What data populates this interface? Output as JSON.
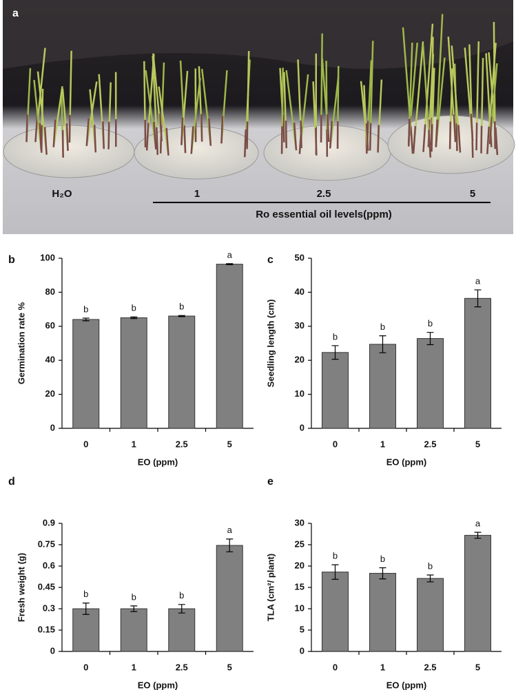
{
  "photo": {
    "panel": "a",
    "labels": [
      "H₂O",
      "1",
      "2.5",
      "5"
    ],
    "caption": "Ro essential oil levels(ppm)"
  },
  "chart_data": [
    {
      "type": "bar",
      "panel": "b",
      "ylabel": "Germination rate  %",
      "xlabel": "EO (ppm)",
      "categories": [
        "0",
        "1",
        "2.5",
        "5"
      ],
      "values": [
        64,
        65,
        66,
        96.5
      ],
      "errors": [
        0.8,
        0.5,
        0.3,
        0.3
      ],
      "annotations": [
        "b",
        "b",
        "b",
        "a"
      ],
      "color": "#808080",
      "ylim": [
        0,
        100
      ],
      "yticks": [
        0,
        20,
        40,
        60,
        80,
        100
      ]
    },
    {
      "type": "bar",
      "panel": "c",
      "ylabel": "Seedling length (cm)",
      "xlabel": "EO (ppm)",
      "categories": [
        "0",
        "1",
        "2.5",
        "5"
      ],
      "values": [
        22.3,
        24.7,
        26.4,
        38.2
      ],
      "errors": [
        2,
        2.5,
        1.8,
        2.5
      ],
      "annotations": [
        "b",
        "b",
        "b",
        "a"
      ],
      "color": "#808080",
      "ylim": [
        0,
        50
      ],
      "yticks": [
        0,
        10,
        20,
        30,
        40,
        50
      ]
    },
    {
      "type": "bar",
      "panel": "d",
      "ylabel": "Fresh weight (g)",
      "xlabel": "EO (ppm)",
      "categories": [
        "0",
        "1",
        "2.5",
        "5"
      ],
      "values": [
        0.3,
        0.3,
        0.3,
        0.745
      ],
      "errors": [
        0.04,
        0.02,
        0.03,
        0.045
      ],
      "annotations": [
        "b",
        "b",
        "b",
        "a"
      ],
      "color": "#808080",
      "ylim": [
        0,
        0.9
      ],
      "yticks": [
        0,
        0.15,
        0.3,
        0.45,
        0.6,
        0.75,
        0.9
      ]
    },
    {
      "type": "bar",
      "panel": "e",
      "ylabel": "TLA (cm²/ plant)",
      "xlabel": "EO (ppm)",
      "categories": [
        "0",
        "1",
        "2.5",
        "5"
      ],
      "values": [
        18.6,
        18.3,
        17.1,
        27.2
      ],
      "errors": [
        1.7,
        1.3,
        0.8,
        0.7
      ],
      "annotations": [
        "b",
        "b",
        "b",
        "a"
      ],
      "color": "#808080",
      "ylim": [
        0,
        30
      ],
      "yticks": [
        0,
        5,
        10,
        15,
        20,
        25,
        30
      ]
    }
  ]
}
